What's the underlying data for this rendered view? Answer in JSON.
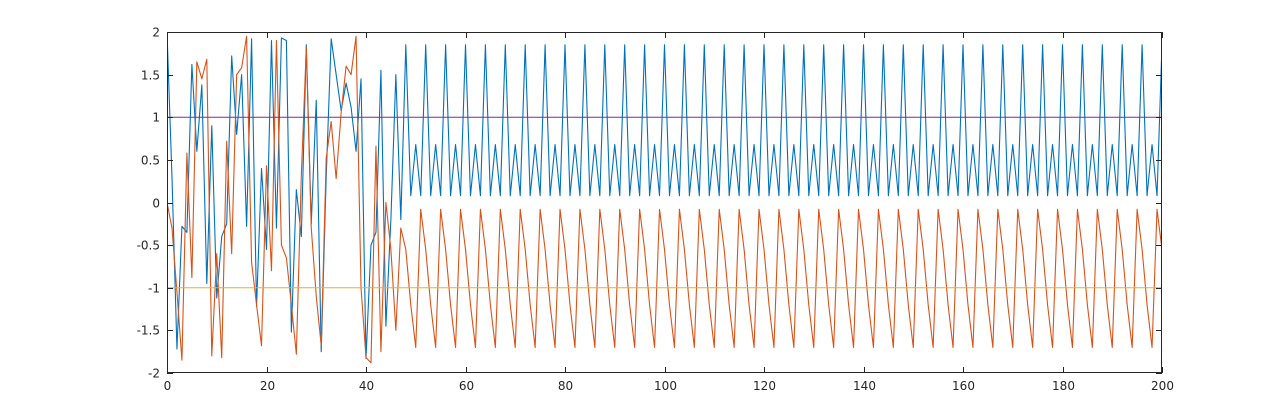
{
  "chart_data": {
    "type": "line",
    "title": "",
    "xlabel": "",
    "ylabel": "",
    "xlim": [
      0,
      200
    ],
    "ylim": [
      -2,
      2
    ],
    "xticks": [
      0,
      20,
      40,
      60,
      80,
      100,
      120,
      140,
      160,
      180,
      200
    ],
    "yticks": [
      -2,
      -1.5,
      -1,
      -0.5,
      0,
      0.5,
      1,
      1.5,
      2
    ],
    "grid": false,
    "legend": "none",
    "series": [
      {
        "color": "#0072BD",
        "x": [
          0,
          1,
          2,
          3,
          4,
          5,
          6,
          7,
          8,
          9,
          10,
          11,
          12,
          13,
          14,
          15,
          16,
          17,
          18,
          19,
          20,
          21,
          22,
          23,
          24,
          25,
          26,
          27,
          28,
          29,
          30,
          31,
          32,
          33,
          34,
          35,
          36,
          37,
          38,
          39,
          40,
          41,
          42,
          43,
          44,
          45,
          46,
          47,
          48
        ],
        "y": [
          2.0,
          0.3,
          -1.72,
          -0.28,
          -0.35,
          1.62,
          0.6,
          1.38,
          -0.95,
          0.9,
          -1.12,
          -0.4,
          -0.25,
          1.72,
          0.8,
          1.5,
          -0.28,
          1.92,
          -1.22,
          0.4,
          -0.55,
          1.9,
          -0.3,
          1.93,
          1.9,
          -1.52,
          0.15,
          -0.4,
          1.85,
          -0.25,
          1.2,
          -1.75,
          0.3,
          1.92,
          1.5,
          1.08,
          1.4,
          1.12,
          0.6,
          1.45,
          -1.83,
          -0.5,
          -0.35,
          1.55,
          -1.45,
          -0.2,
          1.5,
          -0.2,
          1.85
        ],
        "periodic": {
          "x_start": 48,
          "x_end": 200,
          "period": 4,
          "pattern": [
            1.85,
            0.08,
            0.68,
            0.08
          ]
        }
      },
      {
        "color": "#D95319",
        "x": [
          0,
          1,
          2,
          3,
          4,
          5,
          6,
          7,
          8,
          9,
          10,
          11,
          12,
          13,
          14,
          15,
          16,
          17,
          18,
          19,
          20,
          21,
          22,
          23,
          24,
          25,
          26,
          27,
          28,
          29,
          30,
          31,
          32,
          33,
          34,
          35,
          36,
          37,
          38,
          39,
          40,
          41,
          42,
          43,
          44,
          45,
          46,
          47
        ],
        "y": [
          0.0,
          -0.3,
          -1.05,
          -1.85,
          0.58,
          -0.88,
          1.65,
          1.45,
          1.68,
          -1.8,
          -0.6,
          -1.82,
          0.72,
          -0.6,
          1.5,
          1.58,
          1.95,
          -0.7,
          -1.2,
          -1.68,
          0.43,
          -0.8,
          1.9,
          -0.5,
          -0.65,
          -1.2,
          -1.78,
          0.32,
          1.82,
          -0.3,
          -1.1,
          -1.68,
          0.52,
          0.95,
          0.28,
          1.05,
          1.6,
          1.5,
          1.95,
          -1.0,
          -1.82,
          -1.88,
          0.66,
          -1.75,
          0.0,
          -0.55,
          -1.5,
          -0.3
        ],
        "periodic": {
          "x_start": 47,
          "x_end": 200,
          "period": 4,
          "pattern": [
            -0.08,
            -0.55,
            -1.2,
            -1.7
          ]
        }
      },
      {
        "color": "#7E2F8E",
        "x": [
          0,
          200
        ],
        "y": [
          1,
          1
        ]
      },
      {
        "color": "#EDB120",
        "x": [
          0,
          200
        ],
        "y": [
          -1,
          -1
        ]
      }
    ]
  }
}
